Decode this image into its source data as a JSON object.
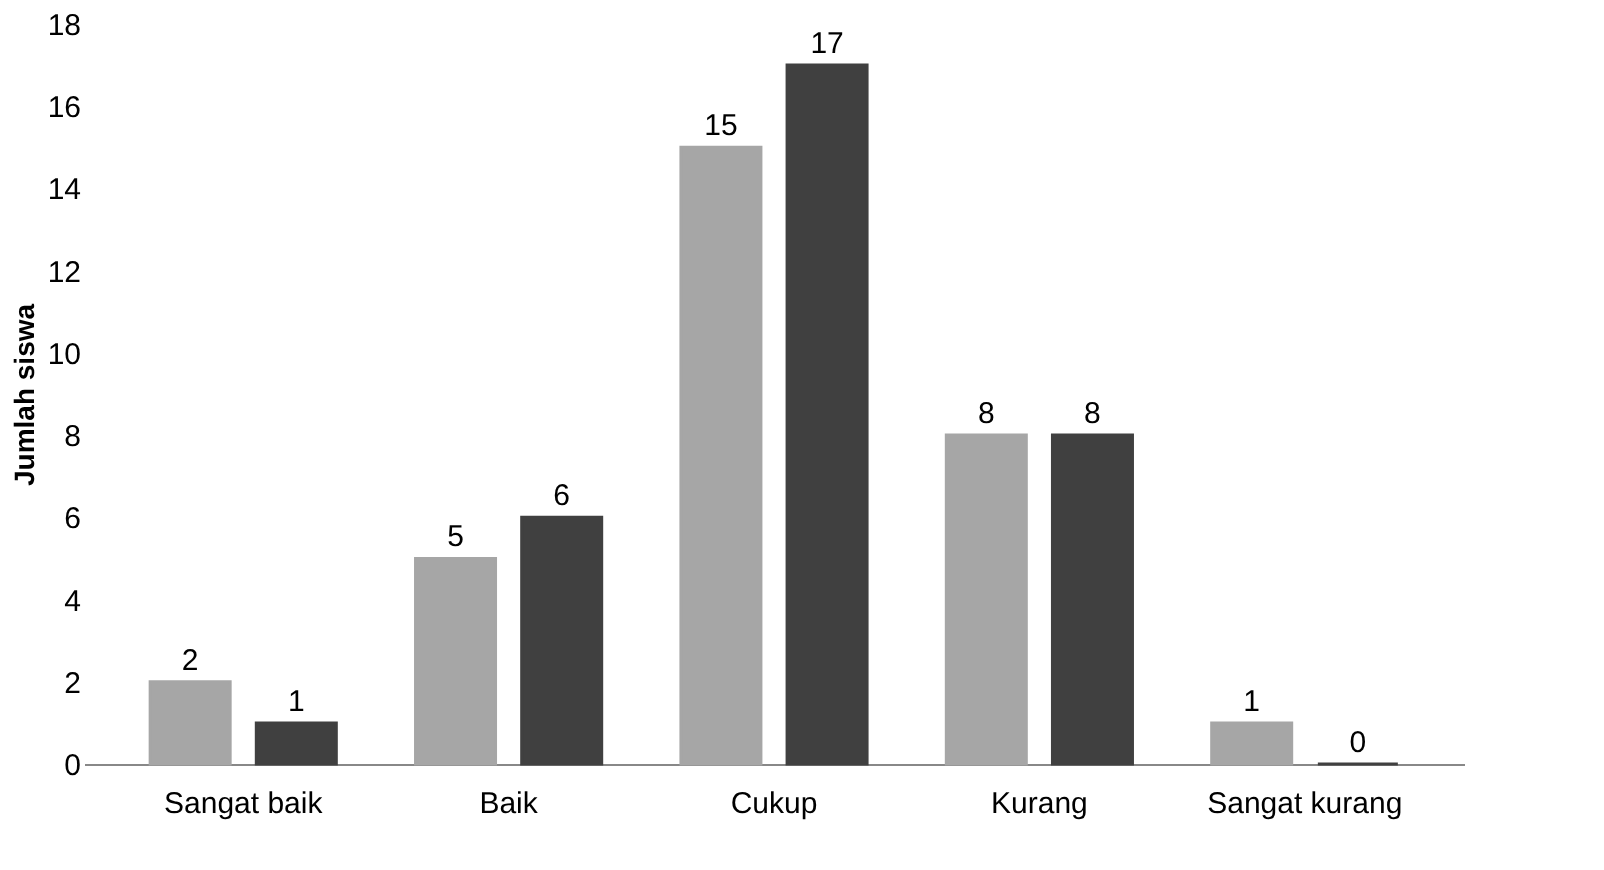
{
  "chart_data": {
    "type": "bar",
    "ylabel": "Jumlah siswa",
    "categories": [
      "Sangat baik",
      "Baik",
      "Cukup",
      "Kurang",
      "Sangat kurang"
    ],
    "series": [
      {
        "color": "#a6a6a6",
        "values": [
          2,
          5,
          15,
          8,
          1
        ]
      },
      {
        "color": "#404040",
        "values": [
          1,
          6,
          17,
          8,
          0
        ]
      }
    ],
    "ylim": [
      0,
      18
    ],
    "yticks": [
      0,
      2,
      4,
      6,
      8,
      10,
      12,
      14,
      16,
      18
    ],
    "grid": false,
    "legend": false,
    "data_labels": true
  }
}
